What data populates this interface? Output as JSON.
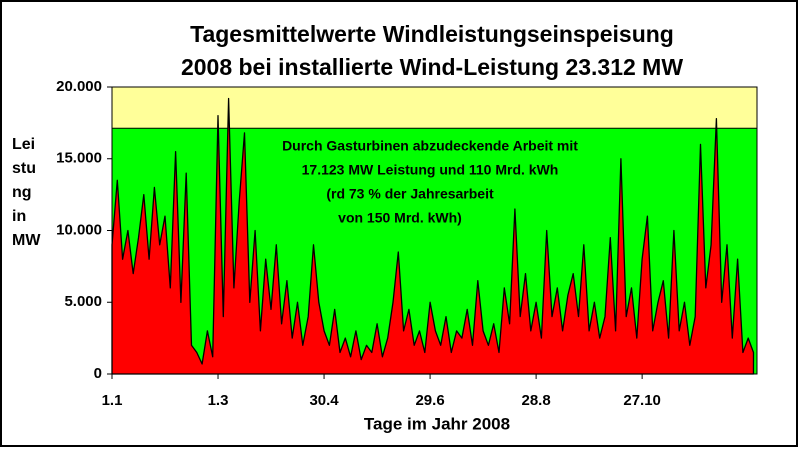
{
  "chart_data": {
    "type": "area",
    "title": [
      "Tagesmittelwerte Windleistungseinspeisung",
      "2008 bei installierte Wind-Leistung 23.312 MW"
    ],
    "ylabel": [
      "Lei",
      "stu",
      "ng",
      "in",
      "MW"
    ],
    "xlabel": "Tage im Jahr 2008",
    "annotation": [
      "Durch Gasturbinen abzudeckende Arbeit mit",
      "17.123 MW Leistung und 110 Mrd. kWh",
      "(rd 73 % der Jahresarbeit",
      "von 150 Mrd. kWh)"
    ],
    "threshold": 17123,
    "threshold_color": "#00ff00",
    "above_color": "#ffff99",
    "color": "#ff0000",
    "xlim": [
      1,
      366
    ],
    "ylim": [
      0,
      20000
    ],
    "xticks": [
      {
        "value": 1,
        "label": "1.1"
      },
      {
        "value": 61,
        "label": "1.3"
      },
      {
        "value": 121,
        "label": "30.4"
      },
      {
        "value": 181,
        "label": "29.6"
      },
      {
        "value": 241,
        "label": "28.8"
      },
      {
        "value": 301,
        "label": "27.10"
      }
    ],
    "yticks": [
      0,
      {
        "value": 5000,
        "label": "5.000"
      },
      {
        "value": 10000,
        "label": "10.000"
      },
      {
        "value": 15000,
        "label": "15.000"
      },
      {
        "value": 20000,
        "label": "20.000"
      }
    ],
    "x": [
      1,
      4,
      7,
      10,
      13,
      16,
      19,
      22,
      25,
      28,
      31,
      34,
      37,
      40,
      43,
      46,
      49,
      52,
      55,
      58,
      61,
      64,
      67,
      70,
      73,
      76,
      79,
      82,
      85,
      88,
      91,
      94,
      97,
      100,
      103,
      106,
      109,
      112,
      115,
      118,
      121,
      124,
      127,
      130,
      133,
      136,
      139,
      142,
      145,
      148,
      151,
      154,
      157,
      160,
      163,
      166,
      169,
      172,
      175,
      178,
      181,
      184,
      187,
      190,
      193,
      196,
      199,
      202,
      205,
      208,
      211,
      214,
      217,
      220,
      223,
      226,
      229,
      232,
      235,
      238,
      241,
      244,
      247,
      250,
      253,
      256,
      259,
      262,
      265,
      268,
      271,
      274,
      277,
      280,
      283,
      286,
      289,
      292,
      295,
      298,
      301,
      304,
      307,
      310,
      313,
      316,
      319,
      322,
      325,
      328,
      331,
      334,
      337,
      340,
      343,
      346,
      349,
      352,
      355,
      358,
      361,
      364
    ],
    "values": [
      9000,
      13500,
      8000,
      10000,
      7000,
      9500,
      12500,
      8000,
      13000,
      9000,
      11000,
      6000,
      15500,
      5000,
      14000,
      2000,
      1500,
      700,
      3000,
      1200,
      18000,
      4000,
      19200,
      6000,
      12000,
      16800,
      5000,
      10000,
      3000,
      8000,
      4500,
      9000,
      3500,
      6500,
      2500,
      5000,
      2000,
      4000,
      9000,
      5000,
      3000,
      2000,
      4500,
      1500,
      2500,
      1200,
      3000,
      1000,
      2000,
      1500,
      3500,
      1200,
      2500,
      5000,
      8500,
      3000,
      4500,
      2000,
      3000,
      1500,
      5000,
      3000,
      2000,
      4000,
      1500,
      3000,
      2500,
      4500,
      2000,
      6500,
      3000,
      2000,
      3500,
      1500,
      6000,
      3500,
      11500,
      4000,
      7000,
      3000,
      5000,
      2500,
      10000,
      4000,
      6000,
      3000,
      5500,
      7000,
      4000,
      9000,
      3000,
      5000,
      2500,
      4000,
      9500,
      3000,
      15000,
      4000,
      6000,
      2500,
      8000,
      11000,
      3000,
      5000,
      6500,
      2500,
      10000,
      3000,
      5000,
      2000,
      4000,
      16000,
      6000,
      9000,
      17800,
      5000,
      9000,
      2500,
      8000,
      1500,
      2500,
      1500
    ]
  }
}
